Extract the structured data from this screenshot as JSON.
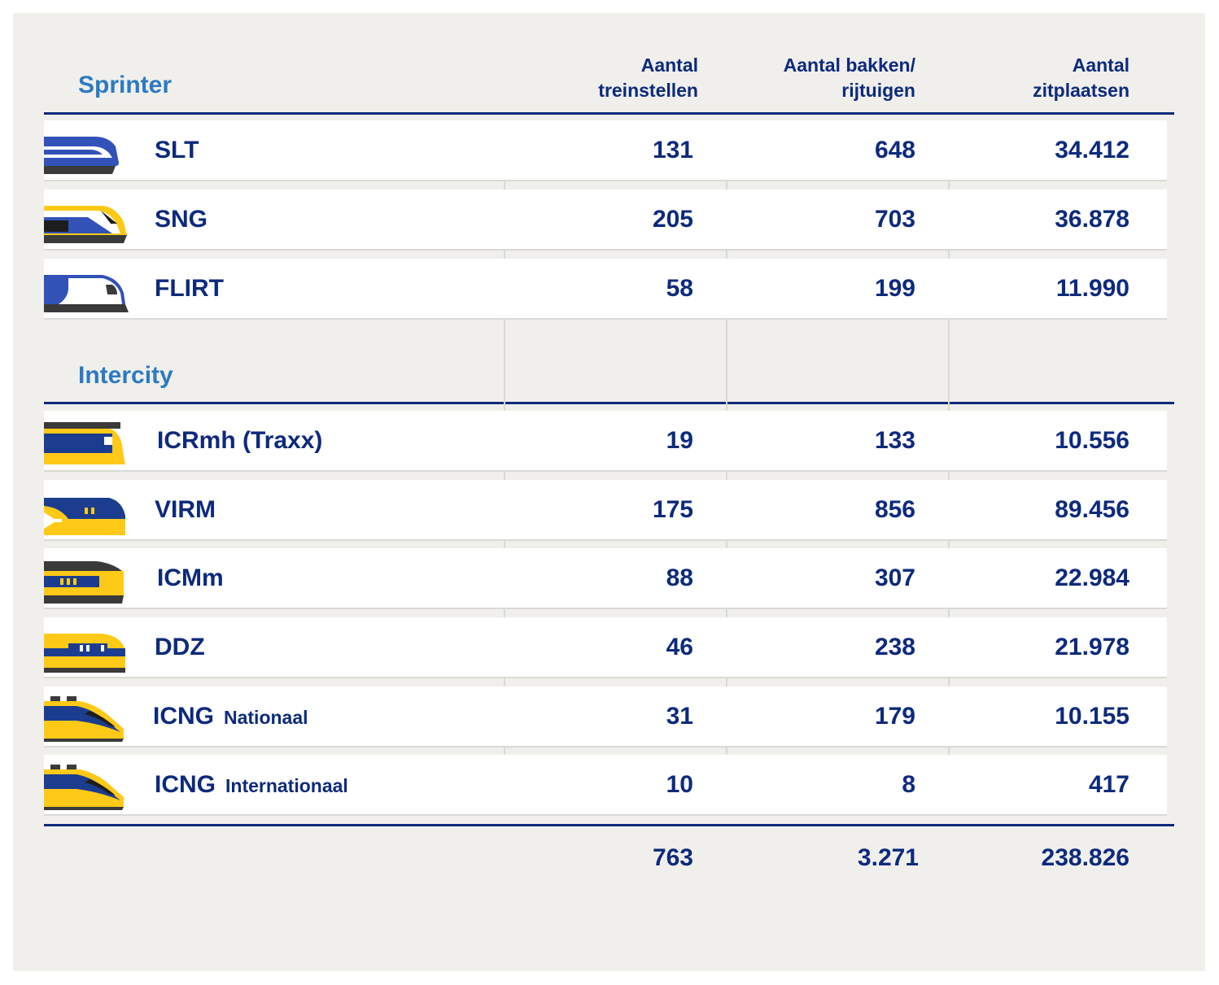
{
  "header": {
    "col1": [
      "Aantal",
      "treinstellen"
    ],
    "col2": [
      "Aantal bakken/",
      "rijtuigen"
    ],
    "col3": [
      "Aantal",
      "zitplaatsen"
    ]
  },
  "sections": [
    {
      "title": "Sprinter",
      "rows": [
        {
          "name": "SLT",
          "sub": "",
          "icon": "slt-train-icon",
          "trainsets": "131",
          "carriages": "648",
          "seats": "34.412"
        },
        {
          "name": "SNG",
          "sub": "",
          "icon": "sng-train-icon",
          "trainsets": "205",
          "carriages": "703",
          "seats": "36.878"
        },
        {
          "name": "FLIRT",
          "sub": "",
          "icon": "flirt-train-icon",
          "trainsets": "58",
          "carriages": "199",
          "seats": "11.990"
        }
      ]
    },
    {
      "title": "Intercity",
      "rows": [
        {
          "name": "ICRmh (Traxx)",
          "sub": "",
          "icon": "icrmh-train-icon",
          "trainsets": "19",
          "carriages": "133",
          "seats": "10.556"
        },
        {
          "name": "VIRM",
          "sub": "",
          "icon": "virm-train-icon",
          "trainsets": "175",
          "carriages": "856",
          "seats": "89.456"
        },
        {
          "name": "ICMm",
          "sub": "",
          "icon": "icmm-train-icon",
          "trainsets": "88",
          "carriages": "307",
          "seats": "22.984"
        },
        {
          "name": "DDZ",
          "sub": "",
          "icon": "ddz-train-icon",
          "trainsets": "46",
          "carriages": "238",
          "seats": "21.978"
        },
        {
          "name": "ICNG",
          "sub": "Nationaal",
          "icon": "icng-train-icon",
          "trainsets": "31",
          "carriages": "179",
          "seats": "10.155"
        },
        {
          "name": "ICNG",
          "sub": "Internationaal",
          "icon": "icng-train-icon",
          "trainsets": "10",
          "carriages": "8",
          "seats": "417"
        }
      ]
    }
  ],
  "totals": {
    "trainsets": "763",
    "carriages": "3.271",
    "seats": "238.826"
  },
  "colors": {
    "navy": "#0d2a7c",
    "section_blue": "#2c7ac2",
    "ns_yellow": "#ffc917",
    "ns_blue": "#3352b8",
    "background": "#f0efeb"
  }
}
